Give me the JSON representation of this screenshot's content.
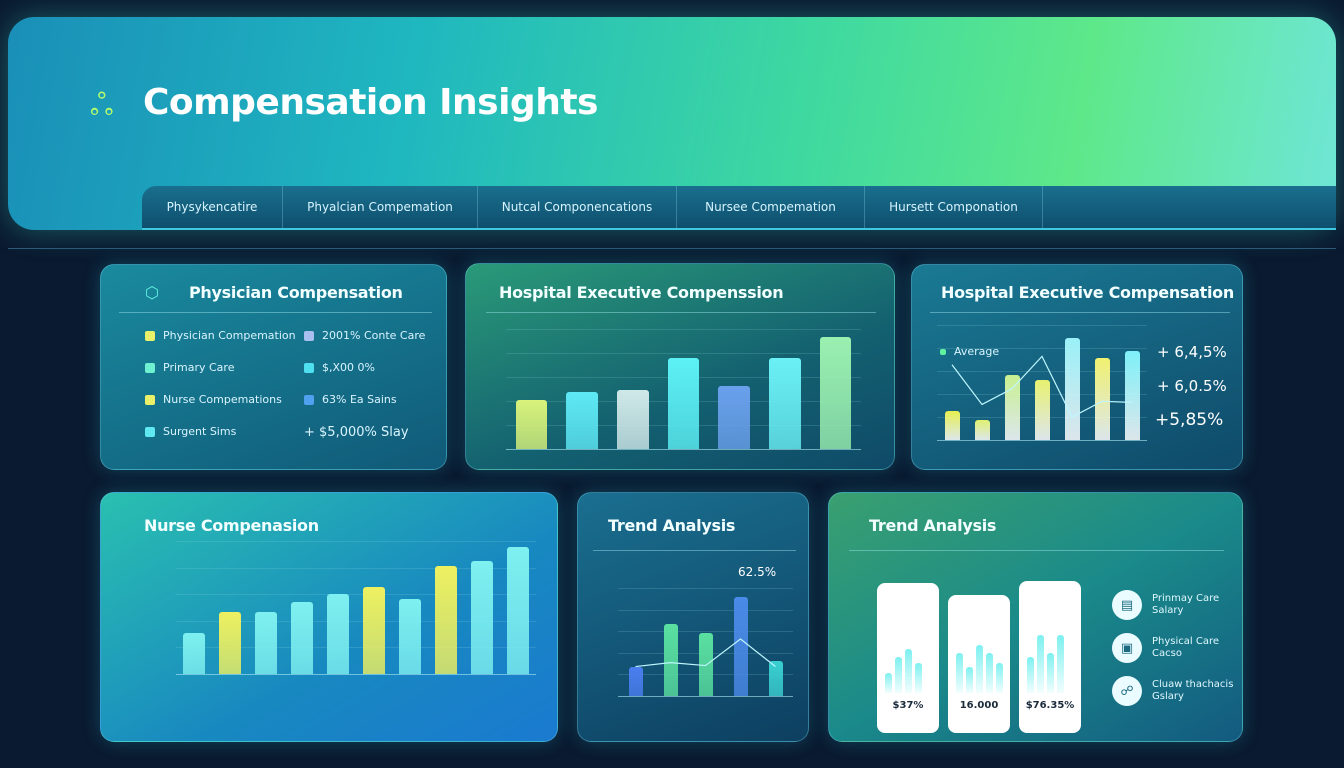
{
  "header": {
    "title": "Compensation Insights",
    "logo_icon": "clover-icon"
  },
  "tabs": [
    "Physykencatire",
    "Phyalcian Compemation",
    "Nutcal Componencations",
    "Nursee Compemation",
    "Hursett Componation"
  ],
  "cards": {
    "physician": {
      "title": "Physician Compensation",
      "icon": "shield-icon",
      "legend": [
        {
          "label": "Physician Compemation",
          "color": "#e9f06a"
        },
        {
          "label": "2001% Conte Care",
          "color": "#a9bff0"
        },
        {
          "label": "Primary Care",
          "color": "#6ff0d0"
        },
        {
          "label": "$,X00 0%",
          "color": "#4fe0f0"
        },
        {
          "label": "Nurse Compemations",
          "color": "#eaf06a"
        },
        {
          "label": "63% Ea Sains",
          "color": "#4fa0ee"
        },
        {
          "label": "Surgent Sims",
          "color": "#5fe8f0"
        },
        {
          "label": "+ $5,000% Slay",
          "color": ""
        }
      ]
    },
    "exec1": {
      "title": "Hospital Executive Compenssion"
    },
    "exec2": {
      "title": "Hospital Executive Compensation",
      "legend": "Average",
      "pcts": [
        "+ 6,4,5%",
        "+ 6,0.5%",
        "+5,85%"
      ]
    },
    "nurse": {
      "title": "Nurse Compenasion"
    },
    "trend1": {
      "title": "Trend Analysis",
      "callout": "62.5%"
    },
    "trend2": {
      "title": "Trend Analysis",
      "minis": [
        {
          "value": "$37%"
        },
        {
          "value": "16.000"
        },
        {
          "value": "$76.35%"
        }
      ],
      "items": [
        {
          "label": "Prinmay Care Salary",
          "icon": "document-icon"
        },
        {
          "label": "Physical Care Cacso",
          "icon": "briefcase-icon"
        },
        {
          "label": "Cluaw thachacis Gslary",
          "icon": "people-icon"
        }
      ]
    }
  },
  "chart_data": [
    {
      "type": "bar",
      "title": "Hospital Executive Compenssion",
      "values": [
        49,
        57,
        59,
        91,
        63,
        91,
        112
      ],
      "ylim": [
        0,
        120
      ],
      "colors": [
        "#d8f27a",
        "#5ee8f5",
        "#cfe8e8",
        "#5cf0f5",
        "#6aa0ec",
        "#6af0f5",
        "#9af0b0"
      ]
    },
    {
      "type": "bar",
      "title": "Hospital Executive Compensation",
      "values": [
        28,
        19,
        62,
        57,
        98,
        78,
        85
      ],
      "line": [
        72,
        34,
        49,
        80,
        22,
        37,
        36
      ],
      "ylim": [
        0,
        110
      ],
      "colors": [
        "#e6f050",
        "#e0f070",
        "#c8f090",
        "#e8f070",
        "#9af0f8",
        "#f0f070",
        "#7ef0f8"
      ]
    },
    {
      "type": "bar",
      "title": "Nurse Compenasion",
      "values": [
        42,
        63,
        63,
        73,
        81,
        88,
        76,
        110,
        115,
        129
      ],
      "ylim": [
        0,
        135
      ],
      "colors": [
        "#7ef0f0",
        "#eef060",
        "#7ef0f0",
        "#7ef0f0",
        "#7ef0f0",
        "#eef060",
        "#7ef0f0",
        "#eef060",
        "#7ef0f0",
        "#7ef0f0"
      ]
    },
    {
      "type": "bar",
      "title": "Trend Analysis",
      "values": [
        30,
        73,
        64,
        101,
        36
      ],
      "line": [
        30,
        34,
        31,
        58,
        30
      ],
      "ylim": [
        0,
        110
      ],
      "colors": [
        "#4a7ef0",
        "#5ae0a0",
        "#5ae0a0",
        "#4a8ae8",
        "#3ad0d0"
      ]
    }
  ]
}
